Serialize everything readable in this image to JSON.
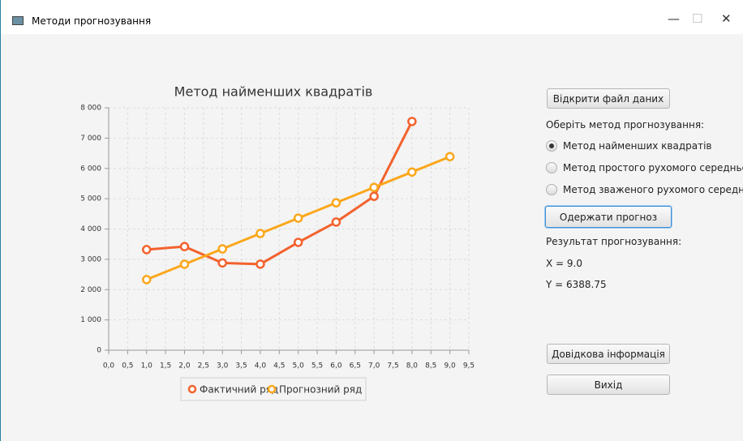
{
  "window": {
    "title": "Методи прогнозування"
  },
  "chart_data": {
    "type": "line",
    "title": "Метод найменших квадратів",
    "x": [
      1,
      2,
      3,
      4,
      5,
      6,
      7,
      8,
      9
    ],
    "series": [
      {
        "name": "Фактичний ряд",
        "color": "#f3622d",
        "values": [
          3320,
          3420,
          2880,
          2840,
          3560,
          4230,
          5080,
          7550,
          null
        ]
      },
      {
        "name": "Прогнозний ряд",
        "color": "#fba71b",
        "values": [
          2330,
          2837,
          3344,
          3852,
          4359,
          4866,
          5374,
          5881,
          6388.75
        ]
      }
    ],
    "xlim": [
      0,
      9.5
    ],
    "xticks": [
      {
        "value": 0,
        "label": "0,0"
      },
      {
        "value": 0.5,
        "label": "0,5"
      },
      {
        "value": 1,
        "label": "1,0"
      },
      {
        "value": 1.5,
        "label": "1,5"
      },
      {
        "value": 2,
        "label": "2,0"
      },
      {
        "value": 2.5,
        "label": "2,5"
      },
      {
        "value": 3,
        "label": "3,0"
      },
      {
        "value": 3.5,
        "label": "3,5"
      },
      {
        "value": 4,
        "label": "4,0"
      },
      {
        "value": 4.5,
        "label": "4,5"
      },
      {
        "value": 5,
        "label": "5,0"
      },
      {
        "value": 5.5,
        "label": "5,5"
      },
      {
        "value": 6,
        "label": "6,0"
      },
      {
        "value": 6.5,
        "label": "6,5"
      },
      {
        "value": 7,
        "label": "7,0"
      },
      {
        "value": 7.5,
        "label": "7,5"
      },
      {
        "value": 8,
        "label": "8,0"
      },
      {
        "value": 8.5,
        "label": "8,5"
      },
      {
        "value": 9,
        "label": "9,0"
      },
      {
        "value": 9.5,
        "label": "9,5"
      }
    ],
    "ylim": [
      0,
      8000
    ],
    "yticks": [
      0,
      {
        "value": 1000,
        "label": "1 000"
      },
      {
        "value": 2000,
        "label": "2 000"
      },
      {
        "value": 3000,
        "label": "3 000"
      },
      {
        "value": 4000,
        "label": "4 000"
      },
      {
        "value": 5000,
        "label": "5 000"
      },
      {
        "value": 6000,
        "label": "6 000"
      },
      {
        "value": 7000,
        "label": "7 000"
      },
      {
        "value": 8000,
        "label": "8 000"
      }
    ],
    "grid": true,
    "legend": "bottom"
  },
  "controls": {
    "open_button": "Відкрити файл даних",
    "method_label": "Оберіть метод прогнозування:",
    "methods": [
      {
        "label": "Метод найменших квадратів",
        "selected": true
      },
      {
        "label": "Метод простого рухомого середнього",
        "selected": false
      },
      {
        "label": "Метод зваженого рухомого середнього",
        "selected": false
      }
    ],
    "forecast_button": "Одержати прогноз",
    "result_label": "Результат прогнозування:",
    "result_x": "X = 9.0",
    "result_y": "Y = 6388.75",
    "help_button": "Довідкова інформація",
    "exit_button": "Вихід"
  }
}
